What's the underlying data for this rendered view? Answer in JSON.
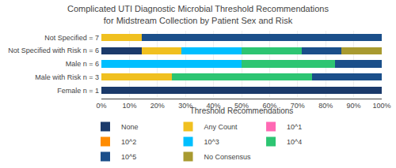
{
  "chart_data": {
    "type": "bar",
    "orientation": "horizontal",
    "stacked": true,
    "title": "Complicated UTI Diagnostic Microbial Threshold Recommendations\nfor Midstream Collection by Patient Sex and Risk",
    "xlabel": "Threshold Recommendations",
    "categories": [
      "Not Specified = 7",
      "Not Specified with Risk n = 6",
      "Male n = 6",
      "Male with Risk n = 3",
      "Female n = 1"
    ],
    "series": [
      {
        "name": "None",
        "color": "#1B3A6B",
        "values": [
          0,
          14.3,
          0,
          0,
          100
        ]
      },
      {
        "name": "Any Count",
        "color": "#F0C020",
        "values": [
          14.3,
          14.3,
          0,
          25.0,
          0
        ]
      },
      {
        "name": "10^1",
        "color": "#FF69B4",
        "values": [
          0,
          0,
          0,
          0,
          0
        ]
      },
      {
        "name": "10^2",
        "color": "#FF8C00",
        "values": [
          0,
          0,
          0,
          0,
          0
        ]
      },
      {
        "name": "10^3",
        "color": "#00BFFF",
        "values": [
          0,
          21.4,
          50.0,
          0,
          0
        ]
      },
      {
        "name": "10^4",
        "color": "#2DC572",
        "values": [
          0,
          21.4,
          33.3,
          50.0,
          0
        ]
      },
      {
        "name": "10^5",
        "color": "#1B4F8A",
        "values": [
          85.7,
          14.3,
          16.7,
          25.0,
          0
        ]
      },
      {
        "name": "No Consensus",
        "color": "#A89A30",
        "values": [
          0,
          14.3,
          0,
          0,
          0
        ]
      }
    ],
    "xlim": [
      0,
      100
    ],
    "xticks": [
      {
        "value": 0,
        "label": "0%"
      },
      {
        "value": 10,
        "label": "10%"
      },
      {
        "value": 20,
        "label": "20%"
      },
      {
        "value": 30,
        "label": "30%"
      },
      {
        "value": 40,
        "label": "40%"
      },
      {
        "value": 50,
        "label": "50%"
      },
      {
        "value": 60,
        "label": "60%"
      },
      {
        "value": 70,
        "label": "70%"
      },
      {
        "value": 80,
        "label": "80%"
      },
      {
        "value": 90,
        "label": "90%"
      },
      {
        "value": 100,
        "label": "100%"
      }
    ],
    "grid": true,
    "legend": "bottom"
  }
}
